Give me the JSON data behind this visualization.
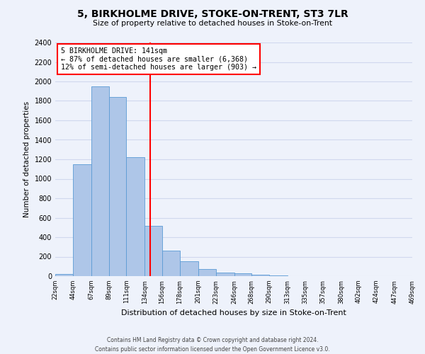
{
  "title": "5, BIRKHOLME DRIVE, STOKE-ON-TRENT, ST3 7LR",
  "subtitle": "Size of property relative to detached houses in Stoke-on-Trent",
  "xlabel": "Distribution of detached houses by size in Stoke-on-Trent",
  "ylabel": "Number of detached properties",
  "bin_edges": [
    22,
    44,
    67,
    89,
    111,
    134,
    156,
    178,
    201,
    223,
    246,
    268,
    290,
    313,
    335,
    357,
    380,
    402,
    424,
    447,
    469
  ],
  "bin_labels": [
    "22sqm",
    "44sqm",
    "67sqm",
    "89sqm",
    "111sqm",
    "134sqm",
    "156sqm",
    "178sqm",
    "201sqm",
    "223sqm",
    "246sqm",
    "268sqm",
    "290sqm",
    "313sqm",
    "335sqm",
    "357sqm",
    "380sqm",
    "402sqm",
    "424sqm",
    "447sqm",
    "469sqm"
  ],
  "counts": [
    25,
    1150,
    1950,
    1840,
    1220,
    520,
    265,
    150,
    75,
    40,
    30,
    15,
    5,
    3,
    2,
    2,
    1,
    1,
    0,
    1
  ],
  "bar_color": "#aec6e8",
  "bar_edge_color": "#5b9bd5",
  "vline_x": 141,
  "vline_color": "red",
  "annotation_title": "5 BIRKHOLME DRIVE: 141sqm",
  "annotation_line1": "← 87% of detached houses are smaller (6,368)",
  "annotation_line2": "12% of semi-detached houses are larger (903) →",
  "annotation_box_color": "white",
  "annotation_box_edge": "red",
  "ylim": [
    0,
    2400
  ],
  "yticks": [
    0,
    200,
    400,
    600,
    800,
    1000,
    1200,
    1400,
    1600,
    1800,
    2000,
    2200,
    2400
  ],
  "bg_color": "#eef2fb",
  "grid_color": "#d0d8ee",
  "footer_line1": "Contains HM Land Registry data © Crown copyright and database right 2024.",
  "footer_line2": "Contains public sector information licensed under the Open Government Licence v3.0."
}
